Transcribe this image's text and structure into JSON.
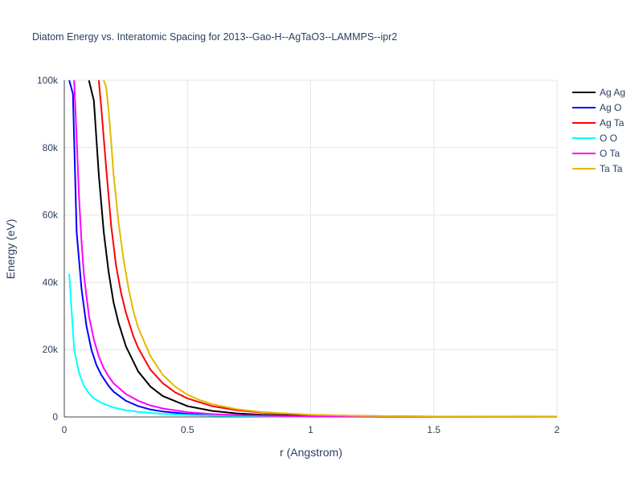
{
  "chart_data": {
    "type": "line",
    "title": "Diatom Energy vs. Interatomic Spacing for 2013--Gao-H--AgTaO3--LAMMPS--ipr2",
    "xlabel": "r (Angstrom)",
    "ylabel": "Energy (eV)",
    "xlim": [
      0,
      2
    ],
    "ylim": [
      0,
      100000
    ],
    "xticks": [
      0,
      0.5,
      1,
      1.5,
      2
    ],
    "xtick_labels": [
      "0",
      "0.5",
      "1",
      "1.5",
      "2"
    ],
    "yticks": [
      0,
      20000,
      40000,
      60000,
      80000,
      100000
    ],
    "ytick_labels": [
      "0",
      "20k",
      "40k",
      "60k",
      "80k",
      "100k"
    ],
    "grid": true,
    "legend_position": "top-right",
    "series": [
      {
        "name": "Ag Ag",
        "color": "#000000",
        "x": [
          0.1,
          0.12,
          0.14,
          0.16,
          0.18,
          0.2,
          0.22,
          0.25,
          0.3,
          0.35,
          0.4,
          0.5,
          0.6,
          0.7,
          0.8,
          1.0,
          1.2,
          1.5,
          2.0
        ],
        "y": [
          100000,
          94000,
          72000,
          55000,
          43000,
          34000,
          28000,
          21000,
          13500,
          9000,
          6200,
          3200,
          1800,
          1050,
          650,
          300,
          150,
          60,
          20
        ]
      },
      {
        "name": "Ag O",
        "color": "#0000ff",
        "x": [
          0.02,
          0.035,
          0.05,
          0.07,
          0.09,
          0.11,
          0.13,
          0.15,
          0.18,
          0.2,
          0.25,
          0.3,
          0.35,
          0.4,
          0.5,
          0.6,
          0.7,
          0.8,
          1.0,
          1.5,
          2.0
        ],
        "y": [
          100000,
          96000,
          55000,
          38000,
          27000,
          20000,
          15500,
          12500,
          9200,
          7500,
          4800,
          3200,
          2200,
          1600,
          900,
          550,
          350,
          230,
          110,
          30,
          10
        ]
      },
      {
        "name": "Ag Ta",
        "color": "#ff0000",
        "x": [
          0.14,
          0.15,
          0.17,
          0.19,
          0.21,
          0.23,
          0.25,
          0.28,
          0.3,
          0.35,
          0.4,
          0.45,
          0.5,
          0.6,
          0.7,
          0.8,
          1.0,
          1.2,
          1.5,
          2.0
        ],
        "y": [
          100000,
          92000,
          74000,
          57000,
          45000,
          37000,
          31000,
          24000,
          20500,
          14000,
          10000,
          7300,
          5500,
          3200,
          2000,
          1300,
          600,
          300,
          120,
          40
        ]
      },
      {
        "name": "O O",
        "color": "#00ffff",
        "x": [
          0.02,
          0.04,
          0.06,
          0.08,
          0.1,
          0.12,
          0.15,
          0.2,
          0.25,
          0.3,
          0.4,
          0.5,
          0.6,
          0.8,
          1.0,
          1.5,
          2.0
        ],
        "y": [
          42500,
          20000,
          13000,
          9200,
          7000,
          5500,
          4200,
          2800,
          2000,
          1500,
          900,
          600,
          400,
          200,
          100,
          30,
          10
        ]
      },
      {
        "name": "O Ta",
        "color": "#ff00ff",
        "x": [
          0.04,
          0.05,
          0.06,
          0.07,
          0.08,
          0.1,
          0.12,
          0.14,
          0.16,
          0.18,
          0.2,
          0.25,
          0.3,
          0.35,
          0.4,
          0.5,
          0.6,
          0.7,
          0.8,
          1.0,
          1.5,
          2.0
        ],
        "y": [
          100000,
          83000,
          65000,
          52000,
          42000,
          30000,
          23000,
          18000,
          14500,
          12000,
          10000,
          6800,
          4800,
          3400,
          2500,
          1400,
          850,
          550,
          350,
          150,
          40,
          10
        ]
      },
      {
        "name": "Ta Ta",
        "color": "#e6b800",
        "x": [
          0.16,
          0.17,
          0.18,
          0.19,
          0.2,
          0.22,
          0.24,
          0.26,
          0.28,
          0.3,
          0.35,
          0.4,
          0.45,
          0.5,
          0.55,
          0.6,
          0.7,
          0.8,
          1.0,
          1.2,
          1.5,
          2.0
        ],
        "y": [
          100000,
          98000,
          91000,
          82000,
          72000,
          58000,
          47000,
          38500,
          31500,
          26500,
          18000,
          12500,
          9000,
          6600,
          5000,
          3800,
          2300,
          1450,
          650,
          320,
          120,
          40
        ]
      }
    ]
  }
}
